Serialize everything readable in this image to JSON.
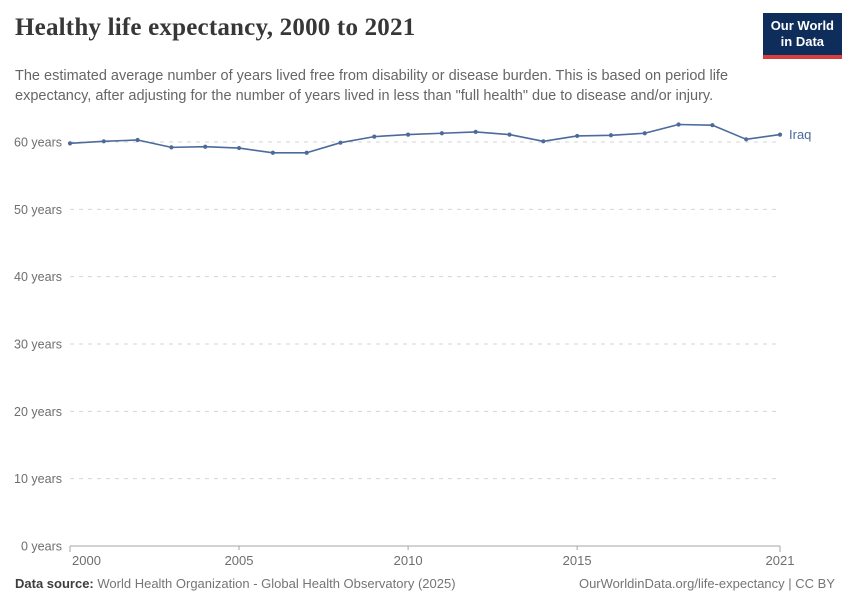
{
  "header": {
    "title": "Healthy life expectancy, 2000 to 2021",
    "logo": {
      "line1": "Our World",
      "line2": "in Data"
    }
  },
  "subtitle": "The estimated average number of years lived free from disability or disease burden. This is based on period life expectancy, after adjusting for the number of years lived in less than \"full health\" due to disease and/or injury.",
  "chart_data": {
    "type": "line",
    "title": "Healthy life expectancy, 2000 to 2021",
    "xlabel": "",
    "ylabel": "years",
    "x": [
      2000,
      2001,
      2002,
      2003,
      2004,
      2005,
      2006,
      2007,
      2008,
      2009,
      2010,
      2011,
      2012,
      2013,
      2014,
      2015,
      2016,
      2017,
      2018,
      2019,
      2020,
      2021
    ],
    "series": [
      {
        "name": "Iraq",
        "color": "#4C6A9C",
        "values": [
          59.8,
          60.1,
          60.3,
          59.2,
          59.3,
          59.1,
          58.4,
          58.4,
          59.9,
          60.8,
          61.1,
          61.3,
          61.5,
          61.1,
          60.1,
          60.9,
          61.0,
          61.3,
          62.6,
          62.5,
          60.4,
          61.1
        ]
      }
    ],
    "ylim": [
      0,
      60
    ],
    "yticks": [
      0,
      10,
      20,
      30,
      40,
      50,
      60
    ],
    "ytick_suffix": " years",
    "xticks": [
      2000,
      2005,
      2010,
      2015,
      2021
    ],
    "grid": "horizontal-dashed",
    "legend_position": "end-of-line-label"
  },
  "footer": {
    "source_label": "Data source:",
    "source_text": "World Health Organization - Global Health Observatory (2025)",
    "link_text": "OurWorldinData.org/life-expectancy",
    "license_text": "| CC BY"
  },
  "colors": {
    "line": "#4C6A9C",
    "grid": "#d6d6d6",
    "axis": "#a6a6a6",
    "tick_text": "#6e6e6e",
    "title_text": "#373737",
    "subtitle_text": "#666666",
    "logo_bg": "#0E2D5B",
    "logo_accent": "#D93D3E"
  }
}
